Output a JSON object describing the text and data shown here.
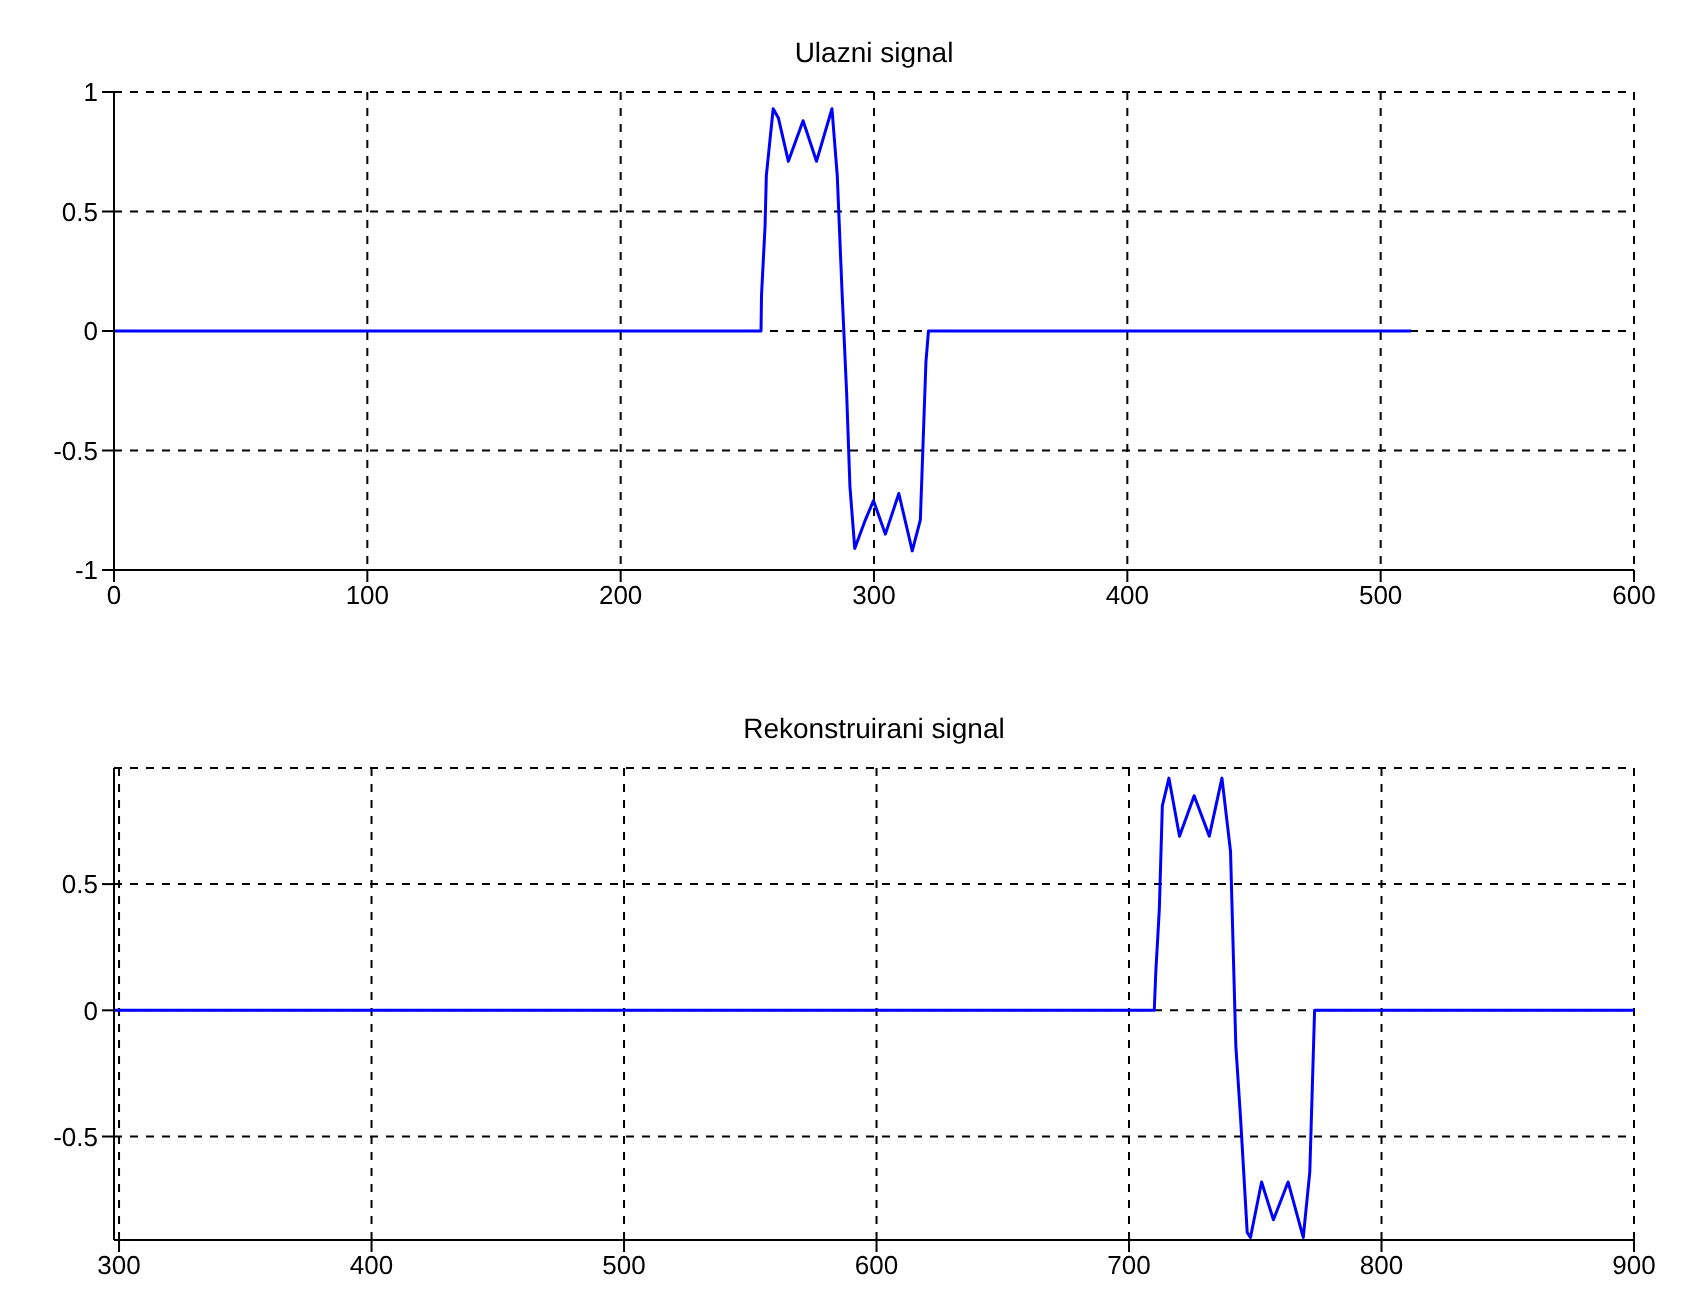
{
  "chart_data": [
    {
      "type": "line",
      "title": "Ulazni signal",
      "x": [
        0,
        255.4,
        255.6,
        257,
        257.5,
        260.2,
        262.3,
        266.2,
        272,
        277.3,
        283.4,
        285.5,
        287.4,
        289.2,
        290.5,
        292.4,
        296.6,
        299.8,
        304.5,
        309.8,
        315.1,
        318.3,
        320.5,
        321.5,
        512
      ],
      "series": [
        {
          "color": "#0000ff",
          "values": [
            0,
            0,
            0.15,
            0.44,
            0.65,
            0.93,
            0.89,
            0.71,
            0.88,
            0.71,
            0.93,
            0.65,
            0.16,
            -0.26,
            -0.65,
            -0.91,
            -0.79,
            -0.71,
            -0.85,
            -0.68,
            -0.92,
            -0.79,
            -0.13,
            0,
            0
          ]
        }
      ],
      "xlim": [
        0,
        600
      ],
      "ylim": [
        -1,
        1
      ],
      "xticks": [
        0,
        100,
        200,
        300,
        400,
        500,
        600
      ],
      "yticks": [
        -1,
        -0.5,
        0,
        0.5,
        1
      ],
      "grid": true
    },
    {
      "type": "line",
      "title": "Rekonstruirani signal",
      "x": [
        298,
        710,
        710.6,
        712,
        713.2,
        715.8,
        720,
        725.8,
        731.8,
        736.8,
        740.2,
        742.3,
        744.2,
        746.8,
        748.1,
        752.5,
        757.2,
        763,
        769,
        771.6,
        773.5,
        900
      ],
      "series": [
        {
          "color": "#0000ff",
          "values": [
            0,
            0,
            0.15,
            0.4,
            0.81,
            0.92,
            0.69,
            0.85,
            0.69,
            0.92,
            0.63,
            -0.14,
            -0.43,
            -0.88,
            -0.9,
            -0.68,
            -0.83,
            -0.68,
            -0.9,
            -0.64,
            0,
            0
          ]
        }
      ],
      "xlim": [
        298,
        900
      ],
      "ylim": [
        -0.91,
        0.96
      ],
      "xticks": [
        300,
        400,
        500,
        600,
        700,
        800,
        900
      ],
      "yticks": [
        -0.5,
        0,
        0.5
      ],
      "grid": true
    }
  ]
}
